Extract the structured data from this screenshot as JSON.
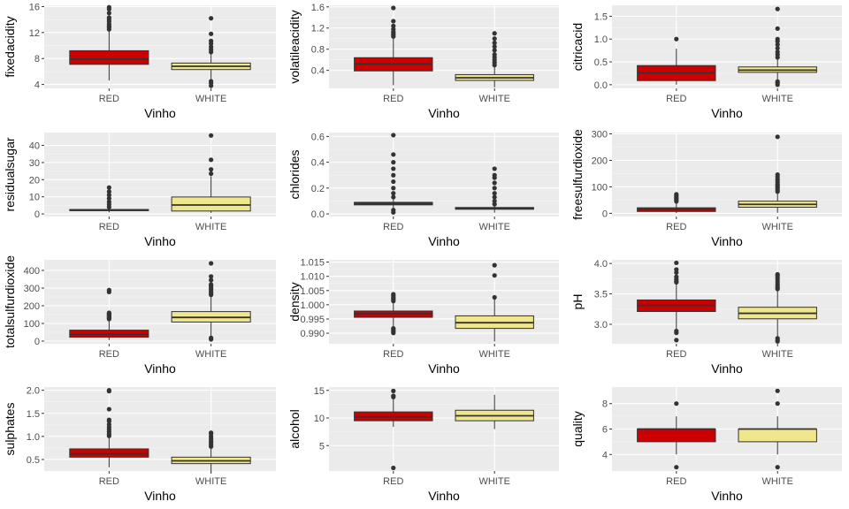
{
  "chart_data": [
    {
      "type": "boxplot",
      "xlabel": "Vinho",
      "ylabel": "fixedacidity",
      "categories": [
        "RED",
        "WHITE"
      ],
      "ylim": [
        3.4,
        16.2
      ],
      "yticks": [
        4,
        8,
        12,
        16
      ],
      "ytick_labels": [
        "4",
        "8",
        "12",
        "16"
      ],
      "boxes": [
        {
          "name": "RED",
          "fill": "#cc0000",
          "lower_whisker": 4.6,
          "q1": 7.1,
          "median": 7.9,
          "q3": 9.2,
          "upper_whisker": 12.3,
          "outliers": [
            12.5,
            12.8,
            13.0,
            13.3,
            13.7,
            14.0,
            14.3,
            15.0,
            15.6,
            15.9
          ]
        },
        {
          "name": "WHITE",
          "fill": "#f0e68c",
          "lower_whisker": 4.8,
          "q1": 6.3,
          "median": 6.8,
          "q3": 7.3,
          "upper_whisker": 8.8,
          "outliers": [
            3.8,
            4.2,
            4.5,
            9.0,
            9.4,
            9.8,
            10.3,
            10.7,
            11.8,
            14.2
          ]
        }
      ]
    },
    {
      "type": "boxplot",
      "xlabel": "Vinho",
      "ylabel": "volatileacidity",
      "categories": [
        "RED",
        "WHITE"
      ],
      "ylim": [
        0.06,
        1.63
      ],
      "yticks": [
        0.4,
        0.8,
        1.2,
        1.6
      ],
      "ytick_labels": [
        "0.4",
        "0.8",
        "1.2",
        "1.6"
      ],
      "boxes": [
        {
          "name": "RED",
          "fill": "#cc0000",
          "lower_whisker": 0.12,
          "q1": 0.39,
          "median": 0.52,
          "q3": 0.64,
          "upper_whisker": 1.01,
          "outliers": [
            1.04,
            1.07,
            1.1,
            1.13,
            1.18,
            1.24,
            1.33,
            1.58
          ]
        },
        {
          "name": "WHITE",
          "fill": "#f0e68c",
          "lower_whisker": 0.08,
          "q1": 0.21,
          "median": 0.26,
          "q3": 0.32,
          "upper_whisker": 0.48,
          "outliers": [
            0.5,
            0.55,
            0.6,
            0.65,
            0.7,
            0.78,
            0.85,
            0.92,
            1.0,
            1.1
          ]
        }
      ]
    },
    {
      "type": "boxplot",
      "xlabel": "Vinho",
      "ylabel": "citricacid",
      "categories": [
        "RED",
        "WHITE"
      ],
      "ylim": [
        -0.08,
        1.74
      ],
      "yticks": [
        0.0,
        0.5,
        1.0,
        1.5
      ],
      "ytick_labels": [
        "0.0",
        "0.5",
        "1.0",
        "1.5"
      ],
      "boxes": [
        {
          "name": "RED",
          "fill": "#cc0000",
          "lower_whisker": 0.0,
          "q1": 0.09,
          "median": 0.26,
          "q3": 0.42,
          "upper_whisker": 0.79,
          "outliers": [
            1.0
          ]
        },
        {
          "name": "WHITE",
          "fill": "#f0e68c",
          "lower_whisker": 0.11,
          "q1": 0.27,
          "median": 0.32,
          "q3": 0.39,
          "upper_whisker": 0.57,
          "outliers": [
            0.0,
            0.04,
            0.07,
            0.6,
            0.66,
            0.72,
            0.8,
            0.88,
            0.95,
            1.0,
            1.23,
            1.66
          ]
        }
      ]
    },
    {
      "type": "boxplot",
      "xlabel": "Vinho",
      "ylabel": "residualsugar",
      "categories": [
        "RED",
        "WHITE"
      ],
      "ylim": [
        -1.5,
        47.5
      ],
      "yticks": [
        0,
        10,
        20,
        30,
        40
      ],
      "ytick_labels": [
        "0",
        "10",
        "20",
        "30",
        "40"
      ],
      "boxes": [
        {
          "name": "RED",
          "fill": "#cc0000",
          "lower_whisker": 0.9,
          "q1": 1.9,
          "median": 2.2,
          "q3": 2.6,
          "upper_whisker": 3.6,
          "outliers": [
            4.0,
            5.5,
            7.0,
            9.0,
            11.0,
            13.0,
            15.4
          ]
        },
        {
          "name": "WHITE",
          "fill": "#f0e68c",
          "lower_whisker": 0.6,
          "q1": 1.7,
          "median": 5.2,
          "q3": 9.9,
          "upper_whisker": 22.0,
          "outliers": [
            23.5,
            26.0,
            31.6,
            45.8
          ]
        }
      ]
    },
    {
      "type": "boxplot",
      "xlabel": "Vinho",
      "ylabel": "chlorides",
      "categories": [
        "RED",
        "WHITE"
      ],
      "ylim": [
        -0.02,
        0.63
      ],
      "yticks": [
        0.0,
        0.2,
        0.4,
        0.6
      ],
      "ytick_labels": [
        "0.0",
        "0.2",
        "0.4",
        "0.6"
      ],
      "boxes": [
        {
          "name": "RED",
          "fill": "#cc0000",
          "lower_whisker": 0.04,
          "q1": 0.07,
          "median": 0.079,
          "q3": 0.09,
          "upper_whisker": 0.12,
          "outliers": [
            0.012,
            0.03,
            0.13,
            0.16,
            0.2,
            0.25,
            0.3,
            0.35,
            0.4,
            0.46,
            0.61
          ]
        },
        {
          "name": "WHITE",
          "fill": "#f0e68c",
          "lower_whisker": 0.01,
          "q1": 0.036,
          "median": 0.043,
          "q3": 0.05,
          "upper_whisker": 0.07,
          "outliers": [
            0.075,
            0.1,
            0.13,
            0.16,
            0.2,
            0.24,
            0.28,
            0.3,
            0.35
          ]
        }
      ]
    },
    {
      "type": "boxplot",
      "xlabel": "Vinho",
      "ylabel": "freesulfurdioxide",
      "categories": [
        "RED",
        "WHITE"
      ],
      "ylim": [
        -12,
        305
      ],
      "yticks": [
        0,
        100,
        200,
        300
      ],
      "ytick_labels": [
        "0",
        "100",
        "200",
        "300"
      ],
      "boxes": [
        {
          "name": "RED",
          "fill": "#cc0000",
          "lower_whisker": 1,
          "q1": 7,
          "median": 14,
          "q3": 21,
          "upper_whisker": 42,
          "outliers": [
            45,
            50,
            55,
            60,
            66,
            72
          ]
        },
        {
          "name": "WHITE",
          "fill": "#f0e68c",
          "lower_whisker": 2,
          "q1": 23,
          "median": 34,
          "q3": 46,
          "upper_whisker": 80,
          "outliers": [
            82,
            88,
            95,
            100,
            105,
            110,
            118,
            125,
            130,
            138,
            146,
            289
          ]
        }
      ]
    },
    {
      "type": "boxplot",
      "xlabel": "Vinho",
      "ylabel": "totalsulfurdioxide",
      "categories": [
        "RED",
        "WHITE"
      ],
      "ylim": [
        -15,
        460
      ],
      "yticks": [
        0,
        100,
        200,
        300,
        400
      ],
      "ytick_labels": [
        "0",
        "100",
        "200",
        "300",
        "400"
      ],
      "boxes": [
        {
          "name": "RED",
          "fill": "#cc0000",
          "lower_whisker": 6,
          "q1": 22,
          "median": 38,
          "q3": 62,
          "upper_whisker": 122,
          "outliers": [
            125,
            130,
            135,
            140,
            145,
            150,
            155,
            160,
            278,
            289
          ]
        },
        {
          "name": "WHITE",
          "fill": "#f0e68c",
          "lower_whisker": 9,
          "q1": 108,
          "median": 134,
          "q3": 167,
          "upper_whisker": 256,
          "outliers": [
            10,
            18,
            262,
            272,
            282,
            294,
            303,
            313,
            320,
            345,
            366,
            440
          ]
        }
      ]
    },
    {
      "type": "boxplot",
      "xlabel": "Vinho",
      "ylabel": "density",
      "categories": [
        "RED",
        "WHITE"
      ],
      "ylim": [
        0.9863,
        1.0158
      ],
      "yticks": [
        0.99,
        0.995,
        1.0,
        1.005,
        1.01,
        1.015
      ],
      "ytick_labels": [
        "0.990",
        "0.995",
        "1.000",
        "1.005",
        "1.010",
        "1.015"
      ],
      "boxes": [
        {
          "name": "RED",
          "fill": "#cc0000",
          "lower_whisker": 0.9925,
          "q1": 0.9956,
          "median": 0.9968,
          "q3": 0.9978,
          "upper_whisker": 1.001,
          "outliers": [
            0.9901,
            0.9907,
            0.9912,
            0.9917,
            1.0013,
            1.0018,
            1.0022,
            1.0026,
            1.0032,
            1.0037
          ]
        },
        {
          "name": "WHITE",
          "fill": "#f0e68c",
          "lower_whisker": 0.9871,
          "q1": 0.9917,
          "median": 0.9937,
          "q3": 0.9961,
          "upper_whisker": 1.0024,
          "outliers": [
            1.0026,
            1.0103,
            1.0139
          ]
        }
      ]
    },
    {
      "type": "boxplot",
      "xlabel": "Vinho",
      "ylabel": "pH",
      "categories": [
        "RED",
        "WHITE"
      ],
      "ylim": [
        2.68,
        4.06
      ],
      "yticks": [
        3.0,
        3.5,
        4.0
      ],
      "ytick_labels": [
        "3.0",
        "3.5",
        "4.0"
      ],
      "boxes": [
        {
          "name": "RED",
          "fill": "#cc0000",
          "lower_whisker": 2.92,
          "q1": 3.21,
          "median": 3.31,
          "q3": 3.4,
          "upper_whisker": 3.68,
          "outliers": [
            2.74,
            2.86,
            2.89,
            3.69,
            3.71,
            3.74,
            3.78,
            3.85,
            3.9,
            4.01
          ]
        },
        {
          "name": "WHITE",
          "fill": "#f0e68c",
          "lower_whisker": 2.79,
          "q1": 3.09,
          "median": 3.18,
          "q3": 3.28,
          "upper_whisker": 3.57,
          "outliers": [
            2.72,
            2.74,
            2.77,
            3.58,
            3.6,
            3.63,
            3.66,
            3.7,
            3.74,
            3.77,
            3.8,
            3.82
          ]
        }
      ]
    },
    {
      "type": "boxplot",
      "xlabel": "Vinho",
      "ylabel": "sulphates",
      "categories": [
        "RED",
        "WHITE"
      ],
      "ylim": [
        0.25,
        2.07
      ],
      "yticks": [
        0.5,
        1.0,
        1.5,
        2.0
      ],
      "ytick_labels": [
        "0.5",
        "1.0",
        "1.5",
        "2.0"
      ],
      "boxes": [
        {
          "name": "RED",
          "fill": "#cc0000",
          "lower_whisker": 0.33,
          "q1": 0.55,
          "median": 0.62,
          "q3": 0.73,
          "upper_whisker": 0.99,
          "outliers": [
            1.01,
            1.05,
            1.1,
            1.15,
            1.2,
            1.26,
            1.33,
            1.36,
            1.59,
            1.98,
            2.0
          ]
        },
        {
          "name": "WHITE",
          "fill": "#f0e68c",
          "lower_whisker": 0.22,
          "q1": 0.41,
          "median": 0.47,
          "q3": 0.55,
          "upper_whisker": 0.76,
          "outliers": [
            0.78,
            0.82,
            0.86,
            0.9,
            0.95,
            1.0,
            1.06,
            1.08
          ]
        }
      ]
    },
    {
      "type": "boxplot",
      "xlabel": "Vinho",
      "ylabel": "alcohol",
      "categories": [
        "RED",
        "WHITE"
      ],
      "ylim": [
        0.4,
        15.6
      ],
      "yticks": [
        5,
        10,
        15
      ],
      "ytick_labels": [
        "5",
        "10",
        "15"
      ],
      "boxes": [
        {
          "name": "RED",
          "fill": "#cc0000",
          "lower_whisker": 8.4,
          "q1": 9.5,
          "median": 10.2,
          "q3": 11.1,
          "upper_whisker": 13.6,
          "outliers": [
            0.96,
            13.8,
            14.0,
            14.9
          ]
        },
        {
          "name": "WHITE",
          "fill": "#f0e68c",
          "lower_whisker": 8.0,
          "q1": 9.5,
          "median": 10.4,
          "q3": 11.4,
          "upper_whisker": 14.2,
          "outliers": []
        }
      ]
    },
    {
      "type": "boxplot",
      "xlabel": "Vinho",
      "ylabel": "quality",
      "categories": [
        "RED",
        "WHITE"
      ],
      "ylim": [
        2.7,
        9.3
      ],
      "yticks": [
        4,
        6,
        8
      ],
      "ytick_labels": [
        "4",
        "6",
        "8"
      ],
      "boxes": [
        {
          "name": "RED",
          "fill": "#cc0000",
          "lower_whisker": 4,
          "q1": 5,
          "median": 6,
          "q3": 6,
          "upper_whisker": 7,
          "outliers": [
            3,
            8
          ]
        },
        {
          "name": "WHITE",
          "fill": "#f0e68c",
          "lower_whisker": 4,
          "q1": 5,
          "median": 6,
          "q3": 6,
          "upper_whisker": 7,
          "outliers": [
            3,
            8,
            9
          ]
        }
      ]
    }
  ]
}
